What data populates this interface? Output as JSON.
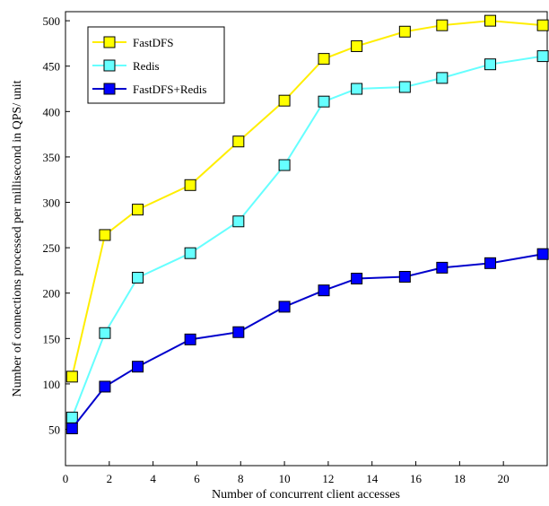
{
  "chart_data": {
    "type": "line",
    "title": "",
    "xlabel": "Number of concurrent client accesses",
    "ylabel": "Number of connections processed per millisecond in QPS/ unit",
    "xlim": [
      0,
      22
    ],
    "ylim": [
      10,
      510
    ],
    "xticks": [
      0,
      2,
      4,
      6,
      8,
      10,
      12,
      14,
      16,
      18,
      20
    ],
    "yticks": [
      50,
      100,
      150,
      200,
      250,
      300,
      350,
      400,
      450,
      500
    ],
    "grid": false,
    "legend": "top-left",
    "series": [
      {
        "name": "FastDFS",
        "color": "#ffee00",
        "marker_fill": "#ffff00",
        "x": [
          0.3,
          1.8,
          3.3,
          5.7,
          7.9,
          10.0,
          11.8,
          13.3,
          15.5,
          17.2,
          19.4,
          21.8
        ],
        "y": [
          108,
          264,
          292,
          319,
          367,
          412,
          458,
          472,
          488,
          495,
          500,
          495
        ]
      },
      {
        "name": "Redis",
        "color": "#66ffff",
        "marker_fill": "#66ffff",
        "x": [
          0.3,
          1.8,
          3.3,
          5.7,
          7.9,
          10.0,
          11.8,
          13.3,
          15.5,
          17.2,
          19.4,
          21.8
        ],
        "y": [
          63,
          156,
          217,
          244,
          279,
          341,
          411,
          425,
          427,
          437,
          452,
          461
        ]
      },
      {
        "name": "FastDFS+Redis",
        "color": "#0000cc",
        "marker_fill": "#0000ff",
        "x": [
          0.3,
          1.8,
          3.3,
          5.7,
          7.9,
          10.0,
          11.8,
          13.3,
          15.5,
          17.2,
          19.4,
          21.8
        ],
        "y": [
          51,
          97,
          119,
          149,
          157,
          185,
          203,
          216,
          218,
          228,
          233,
          243
        ]
      }
    ]
  }
}
